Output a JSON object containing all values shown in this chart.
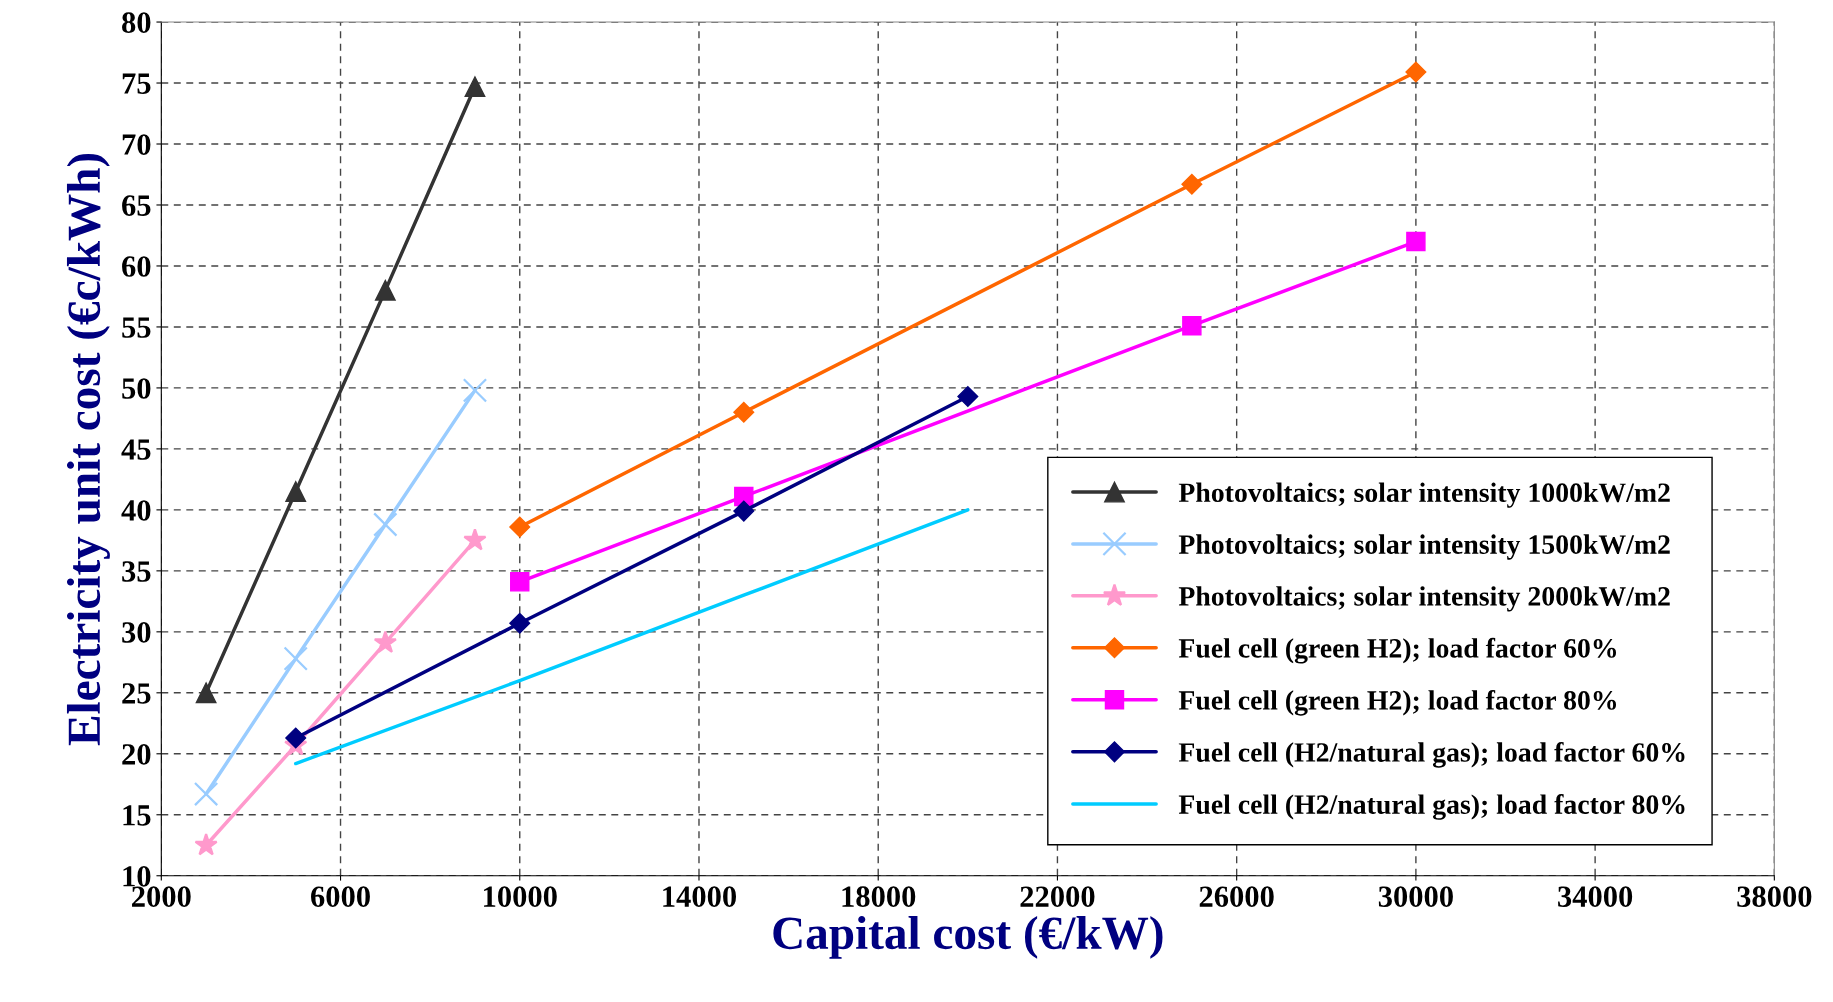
{
  "chart_data": {
    "type": "line",
    "xlabel": "Capital cost (€/kW)",
    "ylabel": "Electricity unit cost (€c/kWh)",
    "xlim": [
      2000,
      38000
    ],
    "xticks": [
      2000,
      6000,
      10000,
      14000,
      18000,
      22000,
      26000,
      30000,
      34000,
      38000
    ],
    "ylim": [
      10,
      80
    ],
    "yticks": [
      10,
      15,
      20,
      25,
      30,
      35,
      40,
      45,
      50,
      55,
      60,
      65,
      70,
      75,
      80
    ],
    "grid": true,
    "legend": "bottom right",
    "line_style": "solid",
    "series": [
      {
        "name": "Photovoltaics; solar intensity 1000kW/m2",
        "color": "#333333",
        "marker": "triangle",
        "x": [
          3000,
          5000,
          7000,
          9000
        ],
        "values": [
          25,
          41.5,
          58,
          74.7
        ]
      },
      {
        "name": "Photovoltaics; solar intensity 1500kW/m2",
        "color": "#99ccff",
        "marker": "cross",
        "x": [
          3000,
          5000,
          7000,
          9000
        ],
        "values": [
          16.7,
          27.8,
          38.8,
          49.8
        ]
      },
      {
        "name": "Photovoltaics; solar intensity 2000kW/m2",
        "color": "#ff99cc",
        "marker": "star",
        "x": [
          3000,
          5000,
          7000,
          9000
        ],
        "values": [
          12.5,
          20.7,
          29.1,
          37.5
        ]
      },
      {
        "name": "Fuel cell (green H2); load factor 60%",
        "color": "#ff6600",
        "marker": "diamond",
        "x": [
          10000,
          15000,
          25000,
          30000
        ],
        "values": [
          38.6,
          48,
          66.7,
          75.9
        ]
      },
      {
        "name": "Fuel cell (green H2); load factor 80%",
        "color": "#ff00ff",
        "marker": "square",
        "x": [
          10000,
          15000,
          25000,
          30000
        ],
        "values": [
          34.1,
          41.1,
          55.1,
          62
        ]
      },
      {
        "name": "Fuel cell (H2/natural gas); load factor 60%",
        "color": "#000080",
        "marker": "diamond",
        "x": [
          5000,
          10000,
          15000,
          20000
        ],
        "values": [
          21.3,
          30.7,
          39.9,
          49.3
        ]
      },
      {
        "name": "Fuel cell (H2/natural gas); load factor 80%",
        "color": "#00ccff",
        "marker": "none",
        "x": [
          5000,
          10000,
          15000,
          20000
        ],
        "values": [
          19.2,
          26,
          33,
          40
        ]
      }
    ]
  }
}
